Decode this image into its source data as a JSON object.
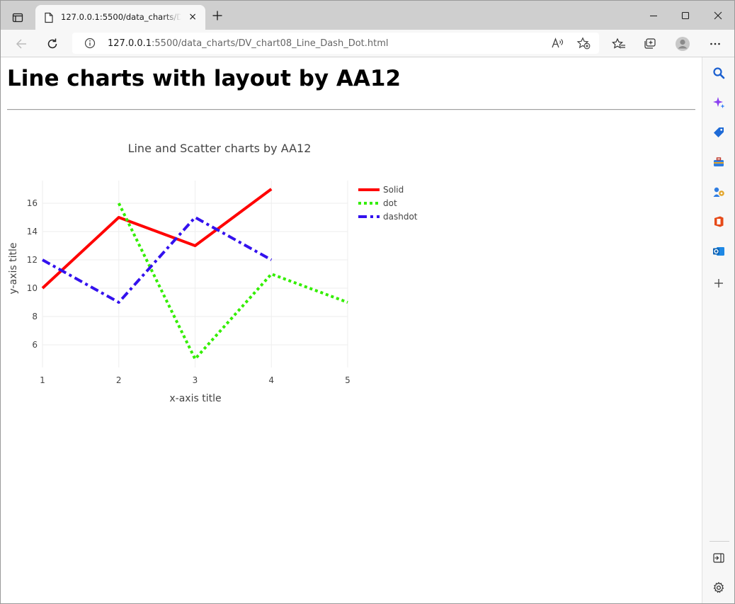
{
  "browser": {
    "tab_title": "127.0.0.1:5500/data_charts/DV_chart08_Line_Dash_Dot.html",
    "tab_close_label": "×",
    "url_host": "127.0.0.1",
    "url_path": ":5500/data_charts/DV_chart08_Line_Dash_Dot.html"
  },
  "page": {
    "heading": "Line charts with layout by AA12"
  },
  "chart_data": {
    "type": "line",
    "title": "Line and Scatter charts by AA12",
    "xlabel": "x-axis title",
    "ylabel": "y-axis title",
    "xlim": [
      1,
      5
    ],
    "ylim": [
      4.4,
      17.6
    ],
    "xticks": [
      1,
      2,
      3,
      4,
      5
    ],
    "yticks": [
      6,
      8,
      10,
      12,
      14,
      16
    ],
    "grid": true,
    "legend_position": "right",
    "series": [
      {
        "name": "Solid",
        "x": [
          1,
          2,
          3,
          4
        ],
        "y": [
          10,
          15,
          13,
          17
        ],
        "color": "#ff0000",
        "dash": "solid"
      },
      {
        "name": "dot",
        "x": [
          2,
          3,
          4,
          5
        ],
        "y": [
          16,
          5,
          11,
          9
        ],
        "color": "#33ee00",
        "dash": "dot"
      },
      {
        "name": "dashdot",
        "x": [
          1,
          2,
          3,
          4
        ],
        "y": [
          12,
          9,
          15,
          12
        ],
        "color": "#3311ee",
        "dash": "dashdot"
      }
    ]
  }
}
